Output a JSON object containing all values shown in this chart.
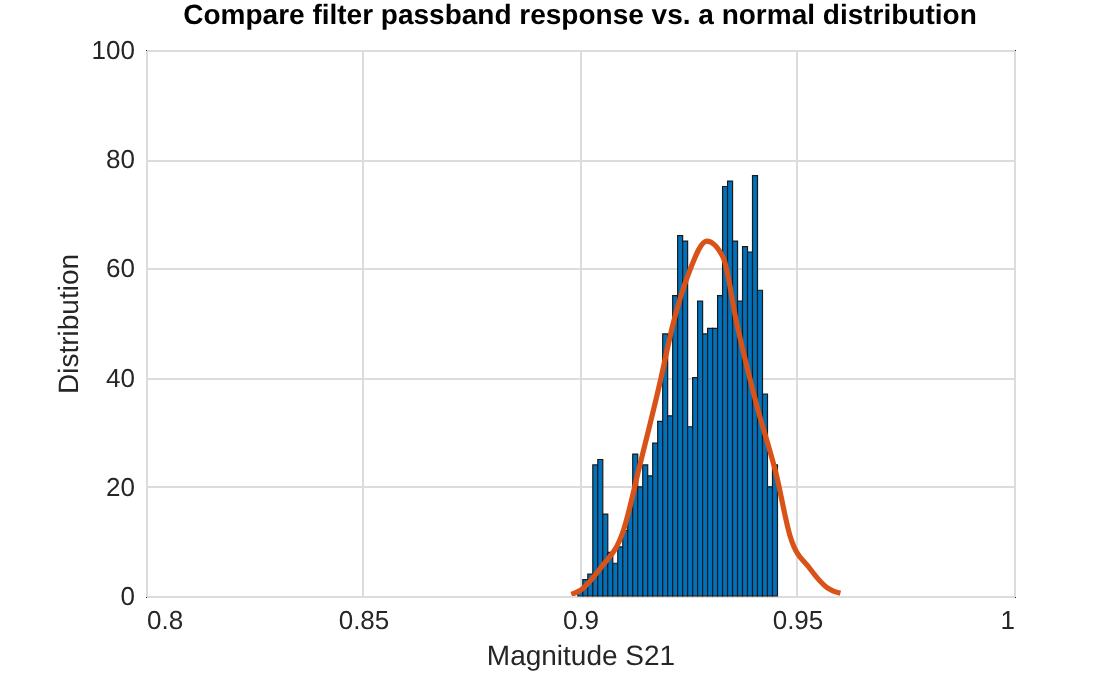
{
  "chart_data": {
    "type": "histogram",
    "title": "Compare filter passband response vs. a normal distribution",
    "xlabel": "Magnitude S21",
    "ylabel": "Distribution",
    "xlim": [
      0.8,
      1
    ],
    "xticks": [
      0.8,
      0.85,
      0.9,
      0.95,
      1
    ],
    "ylim": [
      0,
      100
    ],
    "yticks": [
      0,
      20,
      40,
      60,
      80,
      100
    ],
    "grid": true,
    "series": [
      {
        "color": "#0072bd",
        "bins": [
          0.8995,
          0.90065,
          0.9018,
          0.90295,
          0.9041,
          0.90525,
          0.9064,
          0.90755,
          0.9087,
          0.90985,
          0.911,
          0.91215,
          0.9133,
          0.91445,
          0.9156,
          0.91675,
          0.9179,
          0.91905,
          0.9202,
          0.92135,
          0.9225,
          0.92365,
          0.9248,
          0.92595,
          0.9271,
          0.92825,
          0.9294,
          0.93055,
          0.9317,
          0.93285,
          0.934,
          0.93515,
          0.9363,
          0.93745,
          0.9386,
          0.93975,
          0.9409,
          0.94205,
          0.9432,
          0.94435,
          0.9455
        ],
        "values": [
          1,
          3,
          4,
          24,
          25,
          15,
          8,
          6,
          9,
          12,
          16,
          26,
          20,
          24,
          22,
          28,
          32,
          48,
          33,
          55,
          66,
          65,
          31,
          40,
          54,
          48,
          49,
          49,
          55,
          75,
          76,
          65,
          54,
          64,
          63,
          77,
          56,
          37,
          20,
          24
        ]
      },
      {
        "type": "line",
        "color": "#d95319",
        "x": [
          0.898,
          0.9,
          0.9046,
          0.91,
          0.9138,
          0.9184,
          0.9215,
          0.925,
          0.9292,
          0.933,
          0.9361,
          0.9407,
          0.9453,
          0.9484,
          0.953,
          0.957,
          0.96
        ],
        "values": [
          0.3,
          1,
          5,
          12,
          24,
          39,
          50,
          59,
          65,
          62,
          50,
          35,
          22,
          11,
          5,
          1.5,
          0.5
        ]
      }
    ]
  }
}
